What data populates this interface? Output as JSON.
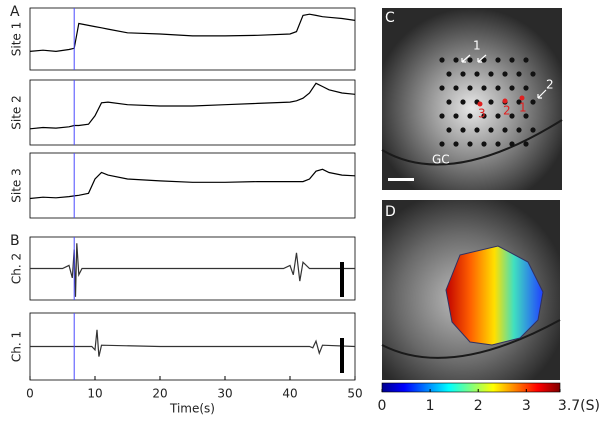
{
  "chart_data": [
    {
      "type": "line",
      "label": "A",
      "xlim": [
        0,
        50
      ],
      "ylim": [
        0,
        1
      ],
      "marker_x": 6.8,
      "marker_color": "#4a4aff",
      "x": [
        0,
        2,
        4,
        6,
        6.8,
        7.5,
        9,
        10,
        11,
        12,
        15,
        20,
        25,
        30,
        35,
        40,
        41,
        42,
        43,
        44,
        45,
        46,
        48,
        50
      ],
      "series": [
        {
          "name": "Site 1",
          "color": "#000000",
          "values": [
            0.3,
            0.32,
            0.3,
            0.33,
            0.35,
            0.75,
            0.72,
            0.7,
            0.68,
            0.66,
            0.6,
            0.58,
            0.55,
            0.55,
            0.56,
            0.58,
            0.62,
            0.88,
            0.9,
            0.88,
            0.86,
            0.85,
            0.83,
            0.8
          ]
        },
        {
          "name": "Site 2",
          "color": "#000000",
          "values": [
            0.25,
            0.27,
            0.26,
            0.28,
            0.3,
            0.3,
            0.32,
            0.45,
            0.65,
            0.66,
            0.62,
            0.6,
            0.6,
            0.62,
            0.64,
            0.66,
            0.68,
            0.72,
            0.8,
            0.95,
            0.9,
            0.85,
            0.8,
            0.78
          ]
        },
        {
          "name": "Site 3",
          "color": "#000000",
          "values": [
            0.3,
            0.32,
            0.31,
            0.33,
            0.34,
            0.35,
            0.38,
            0.6,
            0.7,
            0.66,
            0.6,
            0.57,
            0.55,
            0.55,
            0.56,
            0.56,
            0.56,
            0.56,
            0.6,
            0.72,
            0.75,
            0.7,
            0.66,
            0.65
          ]
        }
      ]
    },
    {
      "type": "line",
      "label": "B",
      "xlim": [
        0,
        50
      ],
      "ylim": [
        0,
        1
      ],
      "marker_x": 6.8,
      "marker_color": "#4a4aff",
      "xticks": [
        0,
        10,
        20,
        30,
        40,
        50
      ],
      "xlabel": "Time(s)",
      "x": [
        0,
        5,
        6,
        6.5,
        6.8,
        7,
        7.2,
        7.5,
        8,
        9.5,
        10,
        10.3,
        10.6,
        11,
        20,
        30,
        39,
        40,
        40.5,
        41,
        41.5,
        42,
        43,
        43.5,
        44,
        44.5,
        45,
        50
      ],
      "series": [
        {
          "name": "Ch. 2",
          "color": "#333333",
          "values": [
            0.5,
            0.5,
            0.55,
            0.35,
            0.8,
            0.05,
            0.9,
            0.4,
            0.5,
            0.5,
            0.5,
            0.5,
            0.5,
            0.5,
            0.5,
            0.5,
            0.5,
            0.55,
            0.4,
            0.75,
            0.3,
            0.6,
            0.5,
            0.5,
            0.5,
            0.5,
            0.5,
            0.5
          ]
        },
        {
          "name": "Ch. 1",
          "color": "#333333",
          "values": [
            0.5,
            0.5,
            0.5,
            0.5,
            0.5,
            0.5,
            0.5,
            0.5,
            0.5,
            0.5,
            0.45,
            0.75,
            0.35,
            0.52,
            0.5,
            0.5,
            0.5,
            0.5,
            0.5,
            0.5,
            0.5,
            0.5,
            0.5,
            0.48,
            0.58,
            0.4,
            0.52,
            0.5
          ]
        }
      ]
    },
    {
      "type": "colorbar",
      "colormap": "jet",
      "xlim": [
        0,
        3.7
      ],
      "xticks": [
        0,
        1,
        2,
        3,
        {
          "value": 3.7,
          "label": "3.7(S)"
        }
      ]
    }
  ],
  "images": [
    {
      "label": "C",
      "annotations": [
        "1",
        "2",
        "3",
        "2",
        "1",
        "GC"
      ]
    },
    {
      "label": "D"
    }
  ]
}
